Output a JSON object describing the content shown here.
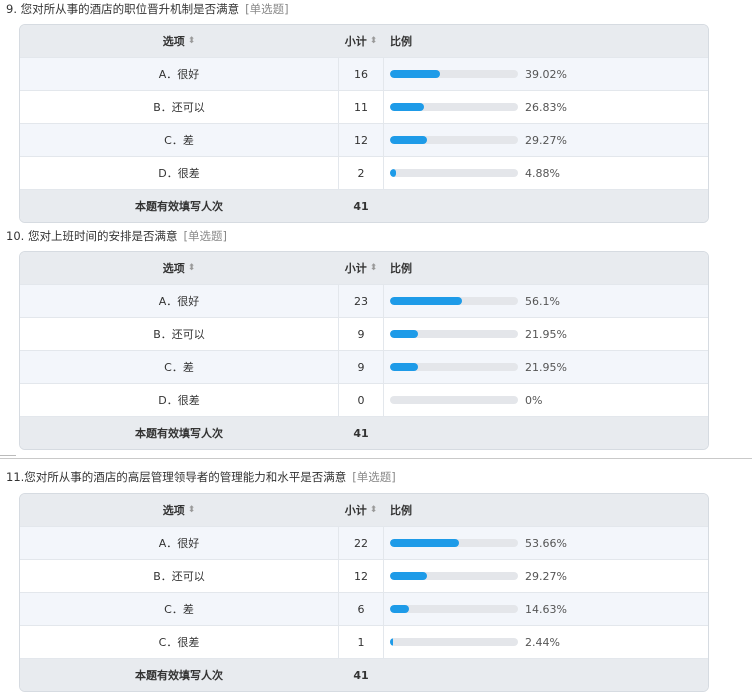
{
  "questions": [
    {
      "title": "9. 您对所从事的酒店的职位晋升机制是否满意",
      "type": "[单选题]",
      "headers": {
        "option": "选项",
        "count": "小计",
        "ratio": "比例"
      },
      "rows": [
        {
          "option": "A．很好",
          "count": "16",
          "pct": "39.02%",
          "value": 39.02
        },
        {
          "option": "B．还可以",
          "count": "11",
          "pct": "26.83%",
          "value": 26.83
        },
        {
          "option": "C．差",
          "count": "12",
          "pct": "29.27%",
          "value": 29.27
        },
        {
          "option": "D．很差",
          "count": "2",
          "pct": "4.88%",
          "value": 4.88
        }
      ],
      "total_label": "本题有效填写人次",
      "total": "41"
    },
    {
      "title": "10. 您对上班时间的安排是否满意",
      "type": "[单选题]",
      "headers": {
        "option": "选项",
        "count": "小计",
        "ratio": "比例"
      },
      "rows": [
        {
          "option": "A．很好",
          "count": "23",
          "pct": "56.1%",
          "value": 56.1
        },
        {
          "option": "B．还可以",
          "count": "9",
          "pct": "21.95%",
          "value": 21.95
        },
        {
          "option": "C．差",
          "count": "9",
          "pct": "21.95%",
          "value": 21.95
        },
        {
          "option": "D．很差",
          "count": "0",
          "pct": "0%",
          "value": 0
        }
      ],
      "total_label": "本题有效填写人次",
      "total": "41"
    },
    {
      "title": "11.您对所从事的酒店的高层管理领导者的管理能力和水平是否满意",
      "type": "[单选题]",
      "headers": {
        "option": "选项",
        "count": "小计",
        "ratio": "比例"
      },
      "rows": [
        {
          "option": "A．很好",
          "count": "22",
          "pct": "53.66%",
          "value": 53.66
        },
        {
          "option": "B．还可以",
          "count": "12",
          "pct": "29.27%",
          "value": 29.27
        },
        {
          "option": "C．差",
          "count": "6",
          "pct": "14.63%",
          "value": 14.63
        },
        {
          "option": "C．很差",
          "count": "1",
          "pct": "2.44%",
          "value": 2.44
        }
      ],
      "total_label": "本题有效填写人次",
      "total": "41"
    }
  ],
  "icons": {
    "sort": "sort-icon",
    "separator": "resize-handle-icon"
  },
  "colors": {
    "bar": "#1e9be8",
    "track": "#e4e6ea",
    "header_bg": "#e8ebef",
    "alt_row": "#f3f6fb"
  }
}
